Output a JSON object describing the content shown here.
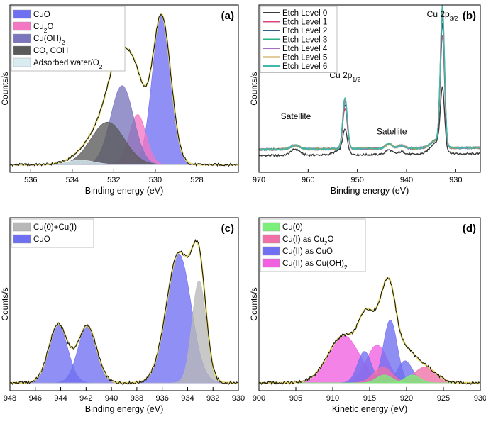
{
  "chart_data": [
    {
      "panel": "(a)",
      "type": "area",
      "xlabel": "Binding energy (eV)",
      "ylabel": "Counts/s",
      "xlim": [
        537,
        526
      ],
      "xticks": [
        536,
        534,
        532,
        530,
        528
      ],
      "ylim": [
        0,
        1.1
      ],
      "legend_position": "top-left",
      "legend": [
        {
          "label": "CuO",
          "sub": "",
          "color": "#6f6ff2"
        },
        {
          "label": "Cu",
          "sub": "2",
          "after": "O",
          "color": "#f477c4"
        },
        {
          "label": "Cu(OH)",
          "sub": "2",
          "after": "",
          "color": "#7a75bd"
        },
        {
          "label": "CO, COH",
          "sub": "",
          "color": "#5a5a5a"
        },
        {
          "label": "Adsorbed water/O",
          "sub": "2",
          "after": "",
          "color": "#d8ecf2"
        }
      ],
      "peaks": [
        {
          "name": "CuO",
          "center": 529.7,
          "fwhm": 1.05,
          "amp": 0.98,
          "color": "#6f6ff2"
        },
        {
          "name": "Cu2O",
          "center": 530.85,
          "fwhm": 0.95,
          "amp": 0.33,
          "color": "#f477c4"
        },
        {
          "name": "Cu(OH)2",
          "center": 531.6,
          "fwhm": 1.3,
          "amp": 0.52,
          "color": "#7a75bd"
        },
        {
          "name": "CO, COH",
          "center": 532.3,
          "fwhm": 1.9,
          "amp": 0.28,
          "color": "#5a5a5a"
        },
        {
          "name": "Adsorbed water/O2",
          "center": 533.6,
          "fwhm": 1.6,
          "amp": 0.03,
          "color": "#d8ecf2"
        }
      ]
    },
    {
      "panel": "(b)",
      "type": "line",
      "xlabel": "Binding energy (eV)",
      "ylabel": "Counts/s",
      "xlim": [
        970,
        925
      ],
      "xticks": [
        970,
        960,
        950,
        940,
        930
      ],
      "ylim": [
        0,
        1.1
      ],
      "legend_position": "top-left",
      "series": [
        {
          "name": "Etch Level 0",
          "color": "#3a3a3a",
          "scale": 0.42
        },
        {
          "name": "Etch Level 1",
          "color": "#e0457b",
          "scale": 0.78
        },
        {
          "name": "Etch Level 2",
          "color": "#2f5f86",
          "scale": 0.86
        },
        {
          "name": "Etch Level 3",
          "color": "#27b38a",
          "scale": 0.92
        },
        {
          "name": "Etch Level 4",
          "color": "#a66cc4",
          "scale": 0.95
        },
        {
          "name": "Etch Level 5",
          "color": "#c79a3a",
          "scale": 0.98
        },
        {
          "name": "Etch Level 6",
          "color": "#3fb8b0",
          "scale": 1.0
        }
      ],
      "annotations": [
        {
          "text": "Satellite",
          "x": 962.5
        },
        {
          "text": "Cu 2p",
          "sub": "1/2",
          "x": 952.5
        },
        {
          "text": "Satellite",
          "x": 943
        },
        {
          "text": "Cu 2p",
          "sub": "3/2",
          "x": 932.7
        }
      ]
    },
    {
      "panel": "(c)",
      "type": "area",
      "xlabel": "Binding energy (eV)",
      "ylabel": "Counts/s",
      "xlim": [
        948,
        930
      ],
      "xticks": [
        948,
        946,
        944,
        942,
        940,
        938,
        936,
        934,
        932,
        930
      ],
      "ylim": [
        0,
        1.1
      ],
      "legend_position": "top-left",
      "legend": [
        {
          "label": "Cu(0)+Cu(I)",
          "sub": "",
          "color": "#b8b8b8"
        },
        {
          "label": "CuO",
          "sub": "",
          "color": "#6f6ff2"
        }
      ],
      "peaks": [
        {
          "name": "CuO sat 1",
          "center": 944.2,
          "fwhm": 1.75,
          "amp": 0.37,
          "color": "#6f6ff2"
        },
        {
          "name": "CuO sat 2",
          "center": 941.9,
          "fwhm": 1.75,
          "amp": 0.36,
          "color": "#6f6ff2"
        },
        {
          "name": "CuO main",
          "center": 934.7,
          "fwhm": 2.3,
          "amp": 0.82,
          "color": "#6f6ff2"
        },
        {
          "name": "Cu(0)+Cu(I)",
          "center": 933.1,
          "fwhm": 1.3,
          "amp": 0.65,
          "color": "#b8b8b8"
        }
      ]
    },
    {
      "panel": "(d)",
      "type": "area",
      "xlabel": "Kinetic energy (eV)",
      "ylabel": "Counts/s",
      "xlim": [
        900,
        930
      ],
      "xticks": [
        900,
        905,
        910,
        915,
        920,
        925,
        930
      ],
      "ylim": [
        0,
        1.1
      ],
      "legend_position": "top-left",
      "legend": [
        {
          "label": "Cu(0)",
          "sub": "",
          "color": "#7af07a"
        },
        {
          "label": "Cu(I) as Cu",
          "sub": "2",
          "after": "O",
          "color": "#f070a8"
        },
        {
          "label": "Cu(II) as CuO",
          "sub": "",
          "color": "#7070f0"
        },
        {
          "label": "Cu(II) as Cu(OH)",
          "sub": "2",
          "after": "",
          "color": "#f060e0"
        }
      ],
      "peaks": [
        {
          "name": "Cu(OH)2 a",
          "center": 911.5,
          "fwhm": 5.0,
          "amp": 0.3,
          "color": "#f060e0"
        },
        {
          "name": "Cu(OH)2 b",
          "center": 916.0,
          "fwhm": 3.4,
          "amp": 0.24,
          "color": "#f060e0"
        },
        {
          "name": "CuO a",
          "center": 914.3,
          "fwhm": 2.2,
          "amp": 0.2,
          "color": "#7070f0"
        },
        {
          "name": "CuO b",
          "center": 917.8,
          "fwhm": 2.2,
          "amp": 0.4,
          "color": "#7070f0"
        },
        {
          "name": "CuO c",
          "center": 919.8,
          "fwhm": 2.4,
          "amp": 0.14,
          "color": "#7070f0"
        },
        {
          "name": "Cu2O a",
          "center": 916.8,
          "fwhm": 3.0,
          "amp": 0.1,
          "color": "#f070a8"
        },
        {
          "name": "Cu2O b",
          "center": 922.5,
          "fwhm": 3.5,
          "amp": 0.1,
          "color": "#f070a8"
        },
        {
          "name": "Cu(0) a",
          "center": 917.0,
          "fwhm": 2.5,
          "amp": 0.05,
          "color": "#7af07a"
        },
        {
          "name": "Cu(0) b",
          "center": 920.8,
          "fwhm": 2.4,
          "amp": 0.05,
          "color": "#7af07a"
        }
      ]
    }
  ]
}
